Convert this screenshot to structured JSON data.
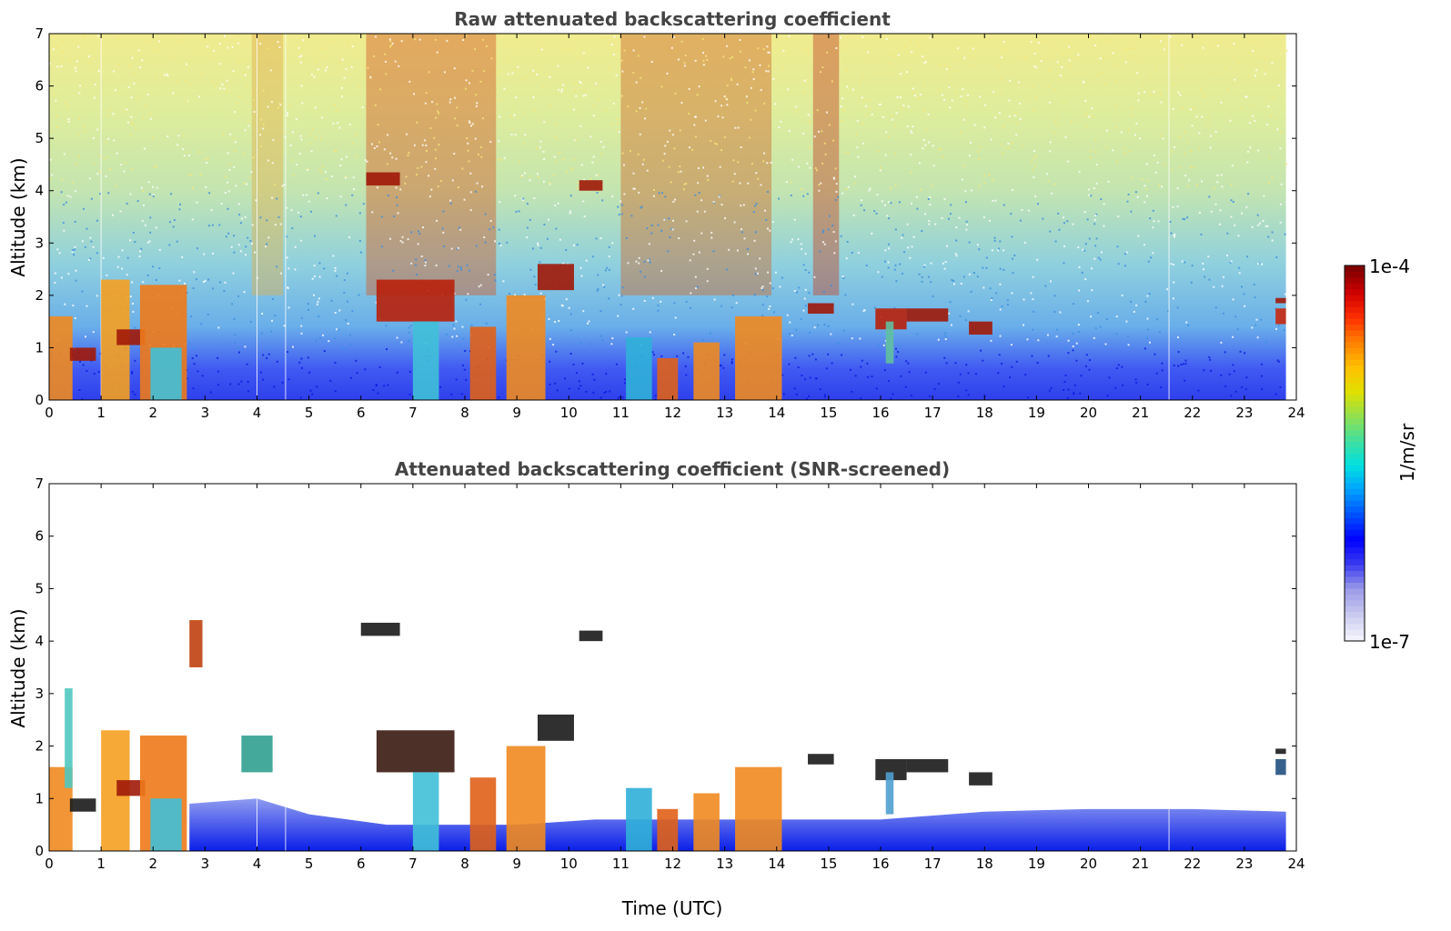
{
  "chart_data": [
    {
      "type": "heatmap",
      "title": "Raw attenuated backscattering coefficient",
      "xlabel": "",
      "ylabel": "Altitude (km)",
      "xlim": [
        0,
        24
      ],
      "ylim": [
        0,
        7
      ],
      "x_ticks": [
        "0",
        "1",
        "2",
        "3",
        "4",
        "5",
        "6",
        "7",
        "8",
        "9",
        "10",
        "11",
        "12",
        "13",
        "14",
        "15",
        "16",
        "17",
        "18",
        "19",
        "20",
        "21",
        "22",
        "23",
        "24"
      ],
      "y_ticks": [
        "0",
        "1",
        "2",
        "3",
        "4",
        "5",
        "6",
        "7"
      ],
      "data_end_time": 23.8,
      "background_gradient": [
        {
          "altitude": 0.0,
          "color": "#0a1ee8"
        },
        {
          "altitude": 0.6,
          "color": "#1f3df0"
        },
        {
          "altitude": 1.4,
          "color": "#4fa0e6"
        },
        {
          "altitude": 2.6,
          "color": "#7cc8d8"
        },
        {
          "altitude": 4.0,
          "color": "#b9e0a2"
        },
        {
          "altitude": 5.5,
          "color": "#d9ea8a"
        },
        {
          "altitude": 7.0,
          "color": "#eee87a"
        }
      ],
      "high_noise_bands": [
        {
          "t0": 6.1,
          "t1": 8.6,
          "color": "#d25a25"
        },
        {
          "t0": 11.0,
          "t1": 13.9,
          "color": "#cf6a2c"
        },
        {
          "t0": 14.7,
          "t1": 15.2,
          "color": "#c44525"
        },
        {
          "t0": 3.9,
          "t1": 4.5,
          "color": "#e0b250"
        }
      ],
      "layers": [
        {
          "t0": 0.0,
          "t1": 0.45,
          "z0": 0.0,
          "z1": 1.6,
          "color": "#f08a20"
        },
        {
          "t0": 0.4,
          "t1": 0.9,
          "z0": 0.75,
          "z1": 1.0,
          "color": "#a01808"
        },
        {
          "t0": 1.0,
          "t1": 1.55,
          "z0": 0.0,
          "z1": 2.3,
          "color": "#f5a020"
        },
        {
          "t0": 1.3,
          "t1": 1.85,
          "z0": 1.05,
          "z1": 1.35,
          "color": "#a01808"
        },
        {
          "t0": 1.75,
          "t1": 2.65,
          "z0": 0.0,
          "z1": 2.2,
          "color": "#ee7a1a"
        },
        {
          "t0": 1.95,
          "t1": 2.55,
          "z0": 0.0,
          "z1": 1.0,
          "color": "#40c0d8"
        },
        {
          "t0": 6.1,
          "t1": 6.75,
          "z0": 4.1,
          "z1": 4.35,
          "color": "#a01808"
        },
        {
          "t0": 10.2,
          "t1": 10.65,
          "z0": 4.0,
          "z1": 4.2,
          "color": "#a01808"
        },
        {
          "t0": 6.3,
          "t1": 7.8,
          "z0": 1.5,
          "z1": 2.3,
          "color": "#b8200a"
        },
        {
          "t0": 7.0,
          "t1": 7.5,
          "z0": 0.0,
          "z1": 1.5,
          "color": "#40c0d8"
        },
        {
          "t0": 8.1,
          "t1": 8.6,
          "z0": 0.0,
          "z1": 1.4,
          "color": "#e06018"
        },
        {
          "t0": 8.8,
          "t1": 9.55,
          "z0": 0.0,
          "z1": 2.0,
          "color": "#f08a20"
        },
        {
          "t0": 9.4,
          "t1": 10.1,
          "z0": 2.1,
          "z1": 2.6,
          "color": "#a01808"
        },
        {
          "t0": 11.1,
          "t1": 11.6,
          "z0": 0.0,
          "z1": 1.2,
          "color": "#30b0d8"
        },
        {
          "t0": 11.7,
          "t1": 12.1,
          "z0": 0.0,
          "z1": 0.8,
          "color": "#e06018"
        },
        {
          "t0": 12.4,
          "t1": 12.9,
          "z0": 0.0,
          "z1": 1.1,
          "color": "#f08a20"
        },
        {
          "t0": 13.2,
          "t1": 14.1,
          "z0": 0.0,
          "z1": 1.6,
          "color": "#f08a20"
        },
        {
          "t0": 14.6,
          "t1": 15.1,
          "z0": 1.65,
          "z1": 1.85,
          "color": "#a01808"
        },
        {
          "t0": 15.9,
          "t1": 16.5,
          "z0": 1.35,
          "z1": 1.75,
          "color": "#b8200a"
        },
        {
          "t0": 16.1,
          "t1": 16.25,
          "z0": 0.7,
          "z1": 1.5,
          "color": "#60c0a0"
        },
        {
          "t0": 16.5,
          "t1": 17.3,
          "z0": 1.5,
          "z1": 1.75,
          "color": "#a01808"
        },
        {
          "t0": 17.7,
          "t1": 18.15,
          "z0": 1.25,
          "z1": 1.5,
          "color": "#a01808"
        },
        {
          "t0": 23.6,
          "t1": 23.8,
          "z0": 1.45,
          "z1": 1.75,
          "color": "#c82810"
        },
        {
          "t0": 23.6,
          "t1": 23.8,
          "z0": 1.85,
          "z1": 1.95,
          "color": "#a01808"
        }
      ]
    },
    {
      "type": "heatmap",
      "title": "Attenuated backscattering coefficient (SNR-screened)",
      "xlabel": "Time (UTC)",
      "ylabel": "Altitude (km)",
      "xlim": [
        0,
        24
      ],
      "ylim": [
        0,
        7
      ],
      "x_ticks": [
        "0",
        "1",
        "2",
        "3",
        "4",
        "5",
        "6",
        "7",
        "8",
        "9",
        "10",
        "11",
        "12",
        "13",
        "14",
        "15",
        "16",
        "17",
        "18",
        "19",
        "20",
        "21",
        "22",
        "23",
        "24"
      ],
      "y_ticks": [
        "0",
        "1",
        "2",
        "3",
        "4",
        "5",
        "6",
        "7"
      ],
      "data_end_time": 23.8,
      "boundary_layer_top": [
        {
          "t": 2.7,
          "z": 0.9
        },
        {
          "t": 4.0,
          "z": 1.0
        },
        {
          "t": 5.0,
          "z": 0.7
        },
        {
          "t": 6.5,
          "z": 0.5
        },
        {
          "t": 7.5,
          "z": 0.5
        },
        {
          "t": 9.0,
          "z": 0.5
        },
        {
          "t": 10.5,
          "z": 0.6
        },
        {
          "t": 14.5,
          "z": 0.6
        },
        {
          "t": 16.0,
          "z": 0.6
        },
        {
          "t": 18.0,
          "z": 0.75
        },
        {
          "t": 20.0,
          "z": 0.8
        },
        {
          "t": 22.0,
          "z": 0.8
        },
        {
          "t": 23.8,
          "z": 0.75
        }
      ],
      "boundary_layer_colors": [
        "#0a1ee8",
        "#8f9cf0"
      ],
      "layers": [
        {
          "t0": 0.0,
          "t1": 0.45,
          "z0": 0.0,
          "z1": 1.6,
          "color": "#f08a20"
        },
        {
          "t0": 0.3,
          "t1": 0.45,
          "z0": 1.2,
          "z1": 3.1,
          "color": "#50c8c0"
        },
        {
          "t0": 0.4,
          "t1": 0.9,
          "z0": 0.75,
          "z1": 1.0,
          "color": "#1a1a1a"
        },
        {
          "t0": 1.0,
          "t1": 1.55,
          "z0": 0.0,
          "z1": 2.3,
          "color": "#f5a020"
        },
        {
          "t0": 1.3,
          "t1": 1.85,
          "z0": 1.05,
          "z1": 1.35,
          "color": "#a01808"
        },
        {
          "t0": 1.75,
          "t1": 2.65,
          "z0": 0.0,
          "z1": 2.2,
          "color": "#ee7a1a"
        },
        {
          "t0": 1.95,
          "t1": 2.55,
          "z0": 0.0,
          "z1": 1.0,
          "color": "#40c0d8"
        },
        {
          "t0": 2.7,
          "t1": 2.95,
          "z0": 3.5,
          "z1": 4.4,
          "color": "#c04010"
        },
        {
          "t0": 3.7,
          "t1": 4.3,
          "z0": 1.5,
          "z1": 2.2,
          "color": "#30a090"
        },
        {
          "t0": 6.0,
          "t1": 6.75,
          "z0": 4.1,
          "z1": 4.35,
          "color": "#1a1a1a"
        },
        {
          "t0": 10.2,
          "t1": 10.65,
          "z0": 4.0,
          "z1": 4.2,
          "color": "#1a1a1a"
        },
        {
          "t0": 6.3,
          "t1": 7.8,
          "z0": 1.5,
          "z1": 2.3,
          "color": "#3a1a10"
        },
        {
          "t0": 7.0,
          "t1": 7.5,
          "z0": 0.0,
          "z1": 1.5,
          "color": "#40c0d8"
        },
        {
          "t0": 8.1,
          "t1": 8.6,
          "z0": 0.0,
          "z1": 1.4,
          "color": "#e06018"
        },
        {
          "t0": 8.8,
          "t1": 9.55,
          "z0": 0.0,
          "z1": 2.0,
          "color": "#f08a20"
        },
        {
          "t0": 9.4,
          "t1": 10.1,
          "z0": 2.1,
          "z1": 2.6,
          "color": "#1a1a1a"
        },
        {
          "t0": 11.1,
          "t1": 11.6,
          "z0": 0.0,
          "z1": 1.2,
          "color": "#30b0d8"
        },
        {
          "t0": 11.7,
          "t1": 12.1,
          "z0": 0.0,
          "z1": 0.8,
          "color": "#e06018"
        },
        {
          "t0": 12.4,
          "t1": 12.9,
          "z0": 0.0,
          "z1": 1.1,
          "color": "#f08a20"
        },
        {
          "t0": 13.2,
          "t1": 14.1,
          "z0": 0.0,
          "z1": 1.6,
          "color": "#f08a20"
        },
        {
          "t0": 14.6,
          "t1": 15.1,
          "z0": 1.65,
          "z1": 1.85,
          "color": "#1a1a1a"
        },
        {
          "t0": 15.9,
          "t1": 16.5,
          "z0": 1.35,
          "z1": 1.75,
          "color": "#1a1a1a"
        },
        {
          "t0": 16.1,
          "t1": 16.25,
          "z0": 0.7,
          "z1": 1.5,
          "color": "#50a0d0"
        },
        {
          "t0": 16.5,
          "t1": 17.3,
          "z0": 1.5,
          "z1": 1.75,
          "color": "#1a1a1a"
        },
        {
          "t0": 17.7,
          "t1": 18.15,
          "z0": 1.25,
          "z1": 1.5,
          "color": "#1a1a1a"
        },
        {
          "t0": 23.6,
          "t1": 23.8,
          "z0": 1.45,
          "z1": 1.75,
          "color": "#205080"
        },
        {
          "t0": 23.6,
          "t1": 23.8,
          "z0": 1.85,
          "z1": 1.95,
          "color": "#1a1a1a"
        }
      ]
    }
  ],
  "colorbar": {
    "label": "1/m/sr",
    "max_label": "1e-4",
    "min_label": "1e-7",
    "scale": "log",
    "stops": [
      "#f2f2fc",
      "#c8c8f0",
      "#9a9ae8",
      "#3a3af0",
      "#0000ff",
      "#0050ff",
      "#00a0ff",
      "#00e0e0",
      "#40e0a0",
      "#90e050",
      "#e0e000",
      "#ffc000",
      "#ff8000",
      "#ff3000",
      "#d00000",
      "#800000"
    ]
  }
}
